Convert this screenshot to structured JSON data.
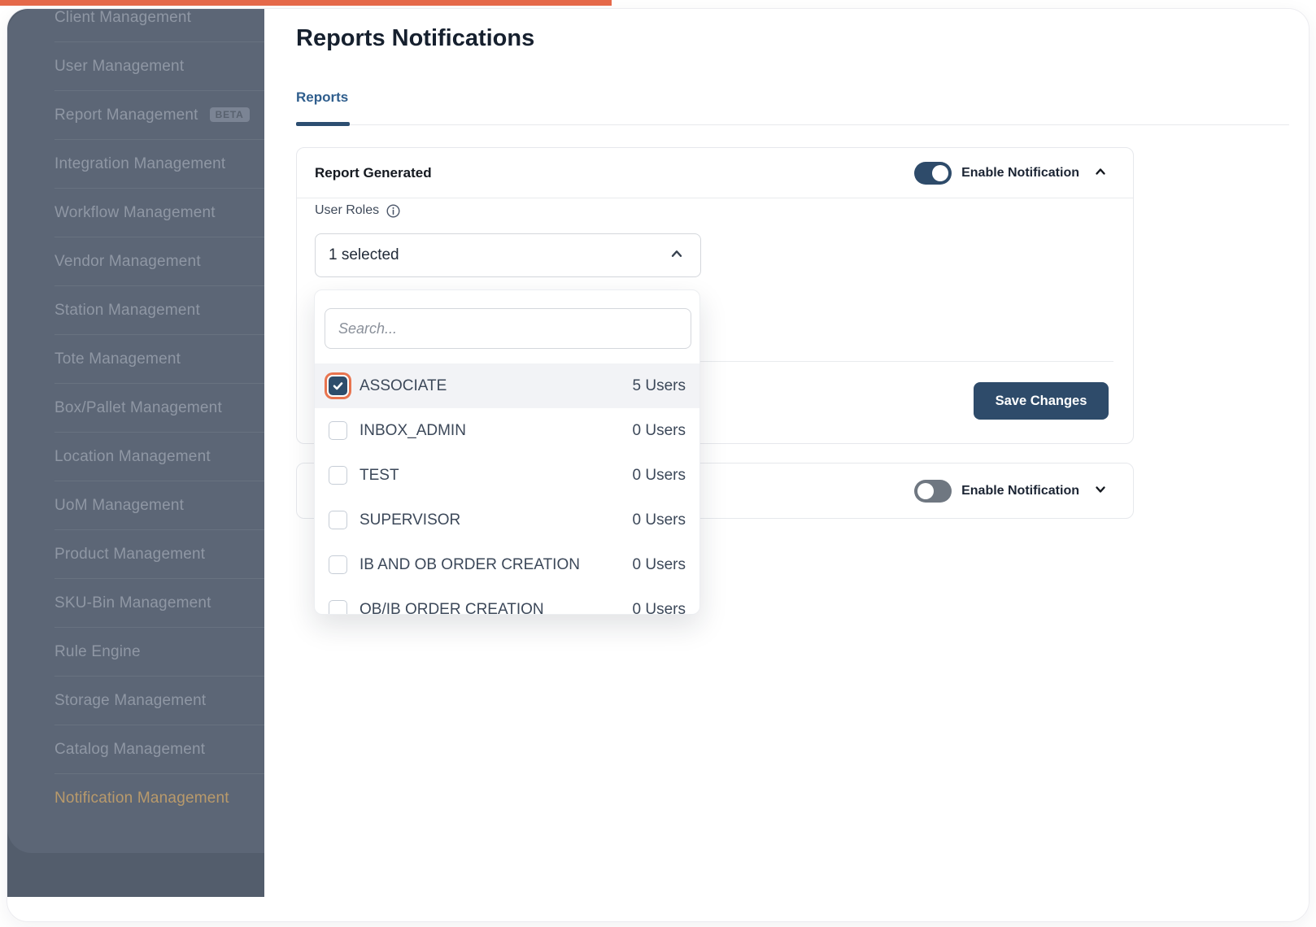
{
  "app": {
    "progress_bar_color": "#e5694a",
    "accent_navy": "#2e4b6a",
    "accent_orange": "#e8744f"
  },
  "sidebar": {
    "items": [
      {
        "label": "Client Management"
      },
      {
        "label": "User Management"
      },
      {
        "label": "Report Management",
        "badge": "BETA"
      },
      {
        "label": "Integration Management"
      },
      {
        "label": "Workflow Management"
      },
      {
        "label": "Vendor Management"
      },
      {
        "label": "Station Management"
      },
      {
        "label": "Tote Management"
      },
      {
        "label": "Box/Pallet Management"
      },
      {
        "label": "Location Management"
      },
      {
        "label": "UoM Management"
      },
      {
        "label": "Product Management"
      },
      {
        "label": "SKU-Bin Management"
      },
      {
        "label": "Rule Engine"
      },
      {
        "label": "Storage Management"
      },
      {
        "label": "Catalog Management"
      },
      {
        "label": "Notification Management",
        "active": true
      }
    ]
  },
  "header": {
    "title": "Reports Notifications"
  },
  "tabs": {
    "reports": {
      "label": "Reports",
      "active": true
    }
  },
  "report_generated_card": {
    "title": "Report Generated",
    "toggle_label": "Enable Notification",
    "toggle_on": true,
    "user_roles_label": "User Roles",
    "select_value": "1 selected",
    "save_button_label": "Save Changes"
  },
  "roles_dropdown": {
    "search_placeholder": "Search...",
    "options": [
      {
        "label": "ASSOCIATE",
        "users": "5 Users",
        "checked": true
      },
      {
        "label": "INBOX_ADMIN",
        "users": "0 Users",
        "checked": false
      },
      {
        "label": "TEST",
        "users": "0 Users",
        "checked": false
      },
      {
        "label": "SUPERVISOR",
        "users": "0 Users",
        "checked": false
      },
      {
        "label": "IB AND OB ORDER CREATION",
        "users": "0 Users",
        "checked": false
      },
      {
        "label": "OB/IB ORDER CREATION",
        "users": "0 Users",
        "checked": false
      }
    ]
  },
  "second_card": {
    "toggle_label": "Enable Notification",
    "toggle_on": false
  }
}
